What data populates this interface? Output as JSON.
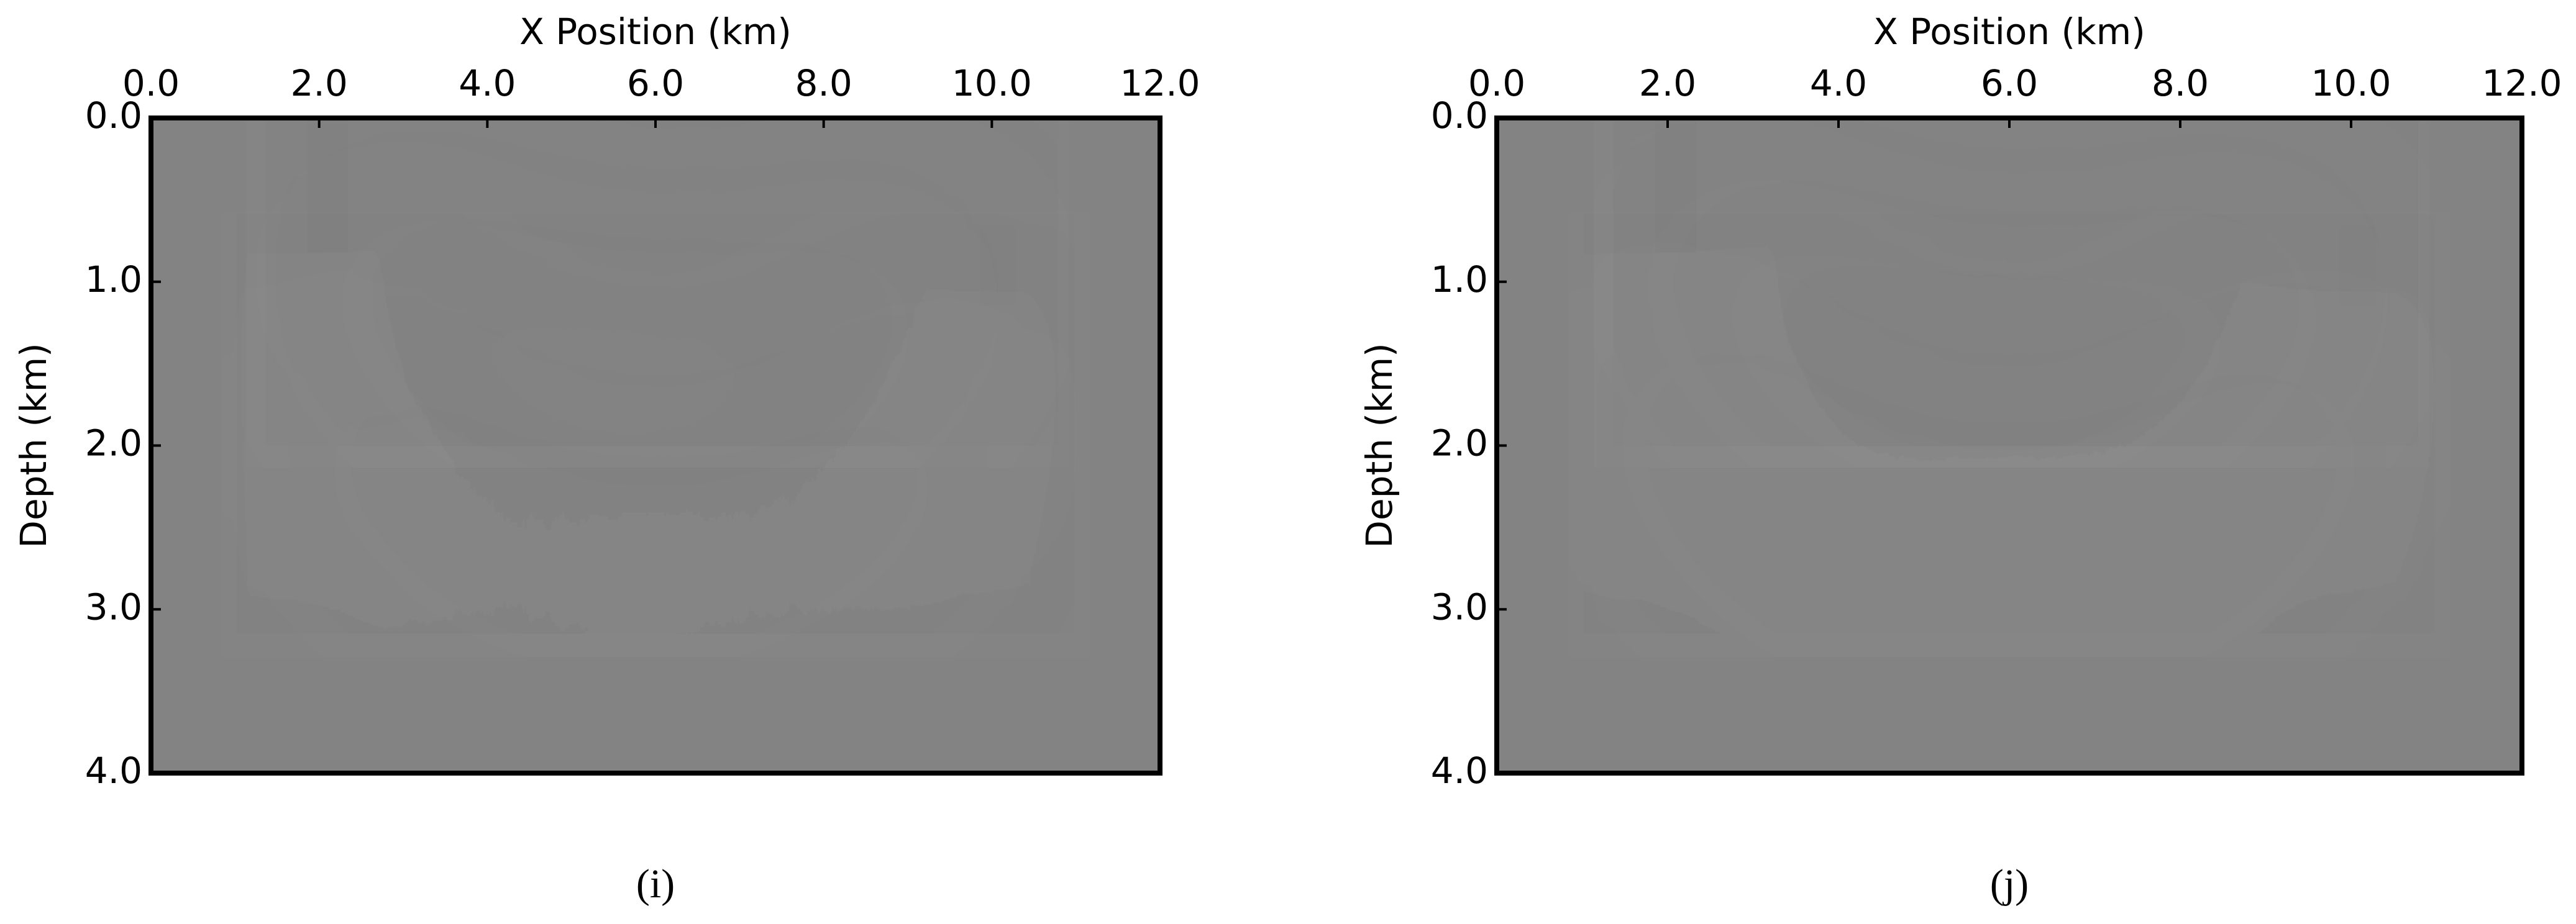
{
  "chart_data": [
    {
      "type": "image",
      "title": "X Position (km)",
      "ylabel": "Depth (km)",
      "caption": "(i)",
      "xlim": [
        0,
        12
      ],
      "ylim": [
        4,
        0
      ],
      "xticks": [
        {
          "value": 0,
          "label": "0.0"
        },
        {
          "value": 2,
          "label": "2.0"
        },
        {
          "value": 4,
          "label": "4.0"
        },
        {
          "value": 6,
          "label": "6.0"
        },
        {
          "value": 8,
          "label": "8.0"
        },
        {
          "value": 10,
          "label": "10.0"
        },
        {
          "value": 12,
          "label": "12.0"
        }
      ],
      "yticks": [
        {
          "value": 0,
          "label": "0.0"
        },
        {
          "value": 1,
          "label": "1.0"
        },
        {
          "value": 2,
          "label": "2.0"
        },
        {
          "value": 3,
          "label": "3.0"
        },
        {
          "value": 4,
          "label": "4.0"
        }
      ]
    },
    {
      "type": "image",
      "title": "X Position (km)",
      "ylabel": "Depth (km)",
      "caption": "(j)",
      "xlim": [
        0,
        12
      ],
      "ylim": [
        4,
        0
      ],
      "xticks": [
        {
          "value": 0,
          "label": "0.0"
        },
        {
          "value": 2,
          "label": "2.0"
        },
        {
          "value": 4,
          "label": "4.0"
        },
        {
          "value": 6,
          "label": "6.0"
        },
        {
          "value": 8,
          "label": "8.0"
        },
        {
          "value": 10,
          "label": "10.0"
        },
        {
          "value": 12,
          "label": "12.0"
        }
      ],
      "yticks": [
        {
          "value": 0,
          "label": "0.0"
        },
        {
          "value": 1,
          "label": "1.0"
        },
        {
          "value": 2,
          "label": "2.0"
        },
        {
          "value": 3,
          "label": "3.0"
        },
        {
          "value": 4,
          "label": "4.0"
        }
      ]
    }
  ]
}
